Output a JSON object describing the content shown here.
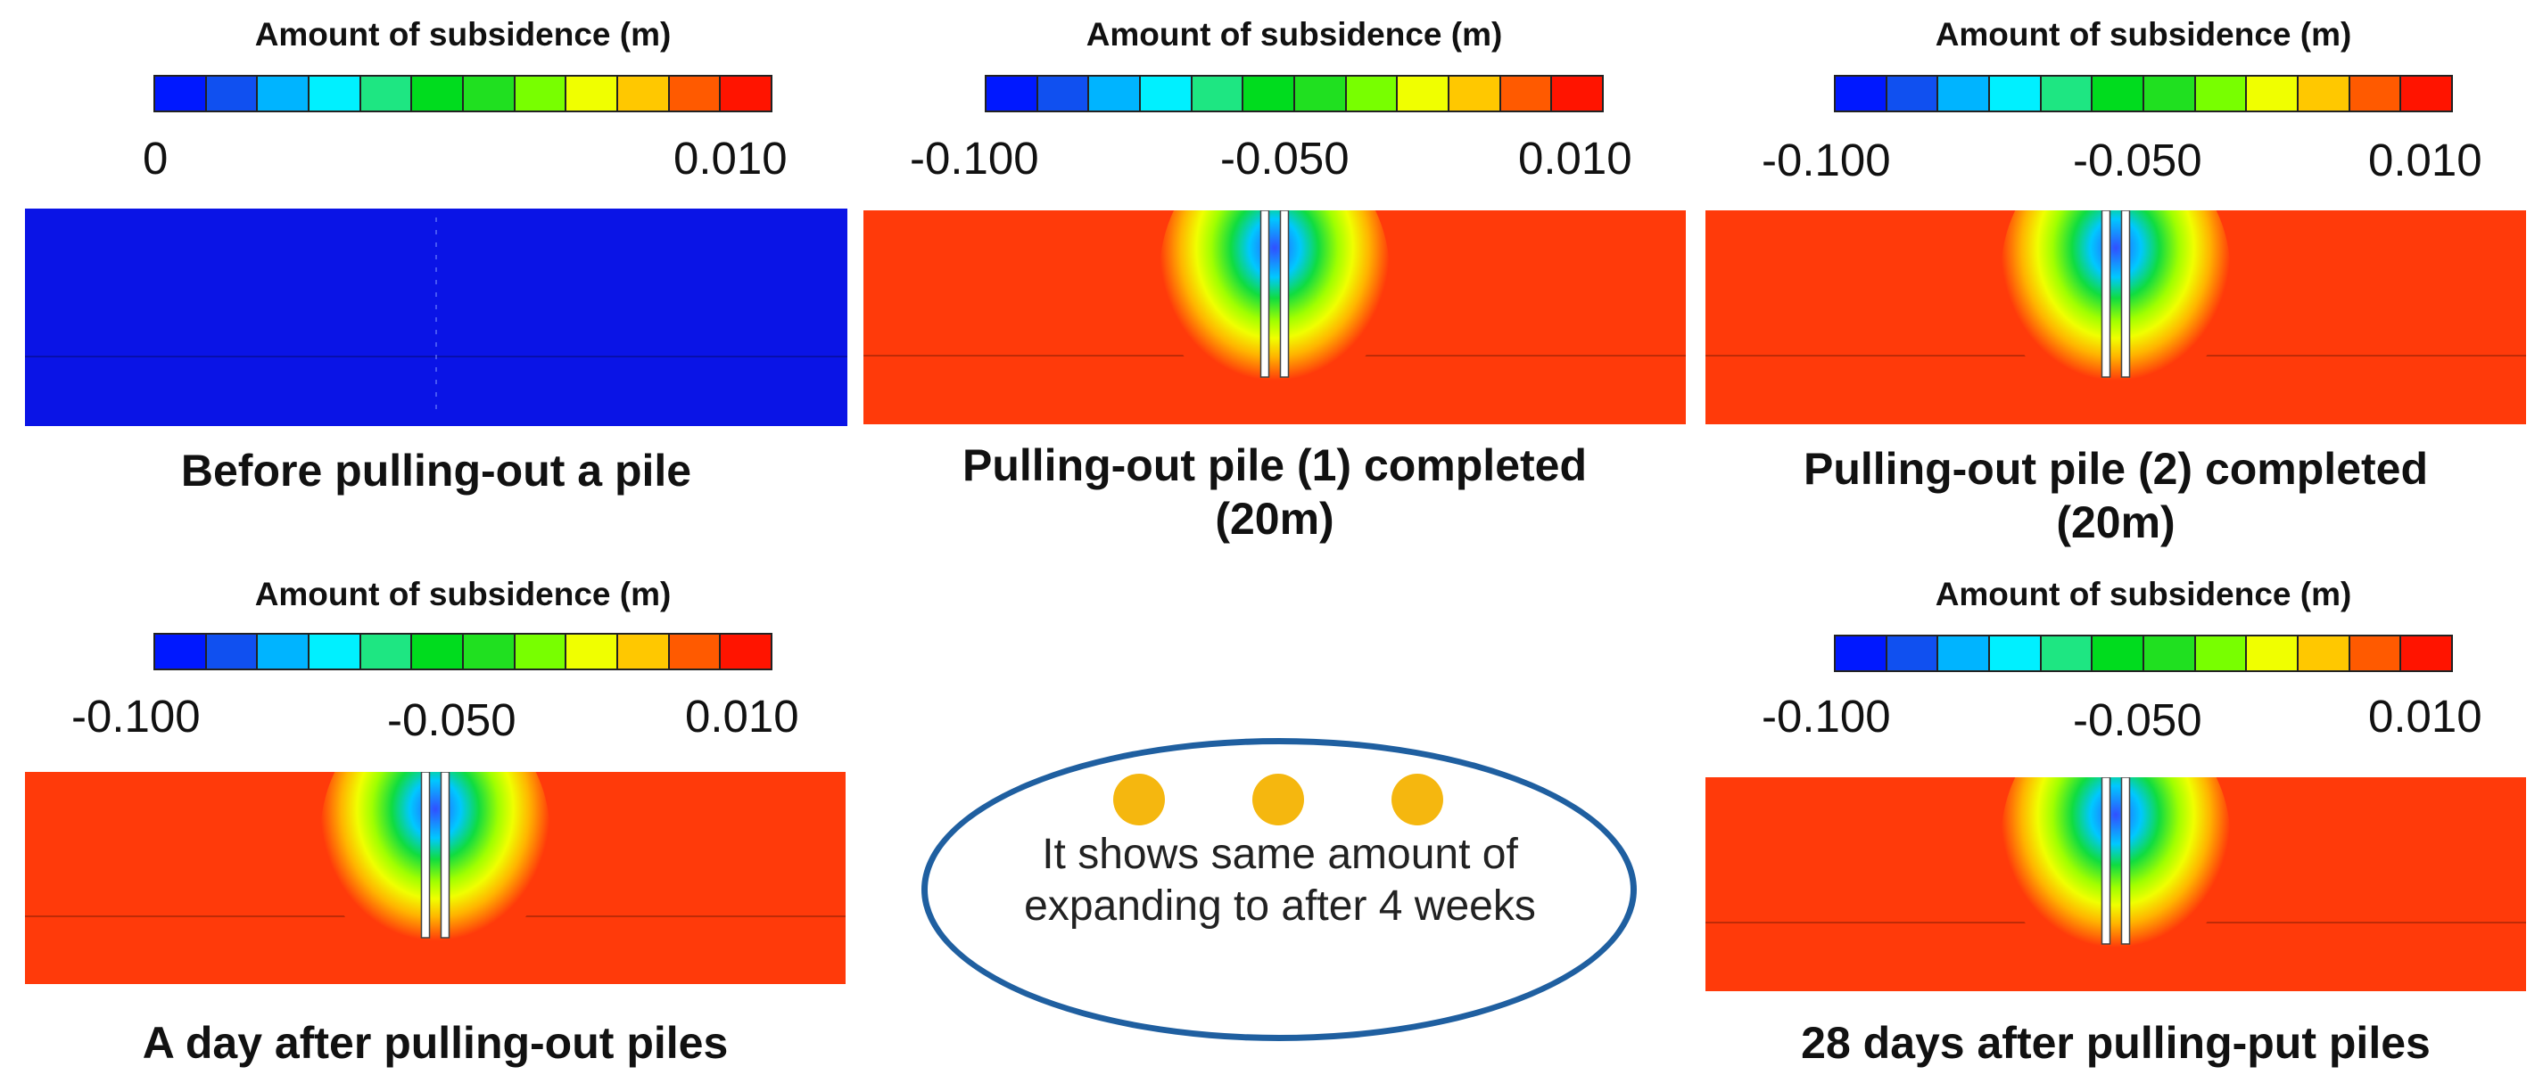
{
  "colorbar": {
    "colors": [
      "#0018ff",
      "#1050f0",
      "#00b4ff",
      "#00f0ff",
      "#1ee682",
      "#00dc1e",
      "#20e020",
      "#78ff00",
      "#f0ff00",
      "#ffc800",
      "#ff5a00",
      "#ff1400"
    ]
  },
  "panels": [
    {
      "id": "before",
      "legend_title": "Amount of subsidence (m)",
      "ticks": [
        "0",
        "0.010"
      ],
      "caption_lines": [
        "Before pulling-out a pile"
      ],
      "state": "uniform",
      "field_color": "#0a14e6"
    },
    {
      "id": "pile1",
      "legend_title": "Amount of subsidence (m)",
      "ticks": [
        "-0.100",
        "-0.050",
        "0.010"
      ],
      "caption_lines": [
        "Pulling-out pile (1) completed",
        "(20m)"
      ],
      "state": "subsidence",
      "field_color": "#ff3a0a"
    },
    {
      "id": "pile2",
      "legend_title": "Amount of subsidence (m)",
      "ticks": [
        "-0.100",
        "-0.050",
        "0.010"
      ],
      "caption_lines": [
        "Pulling-out pile (2) completed",
        "(20m)"
      ],
      "state": "subsidence",
      "field_color": "#ff3a0a"
    },
    {
      "id": "day1",
      "legend_title": "Amount of subsidence (m)",
      "ticks": [
        "-0.100",
        "-0.050",
        "0.010"
      ],
      "caption_lines": [
        "A day after pulling-out piles"
      ],
      "state": "subsidence",
      "field_color": "#ff3a0a"
    },
    {
      "id": "day28",
      "legend_title": "Amount of subsidence (m)",
      "ticks": [
        "-0.100",
        "-0.050",
        "0.010"
      ],
      "caption_lines": [
        "28 days after pulling-put piles"
      ],
      "state": "subsidence",
      "field_color": "#ff3a0a"
    }
  ],
  "note": {
    "lines": [
      "It shows same amount of",
      "expanding to after 4 weeks"
    ],
    "dot_color": "#f5b70f",
    "border_color": "#1f5fa0"
  }
}
